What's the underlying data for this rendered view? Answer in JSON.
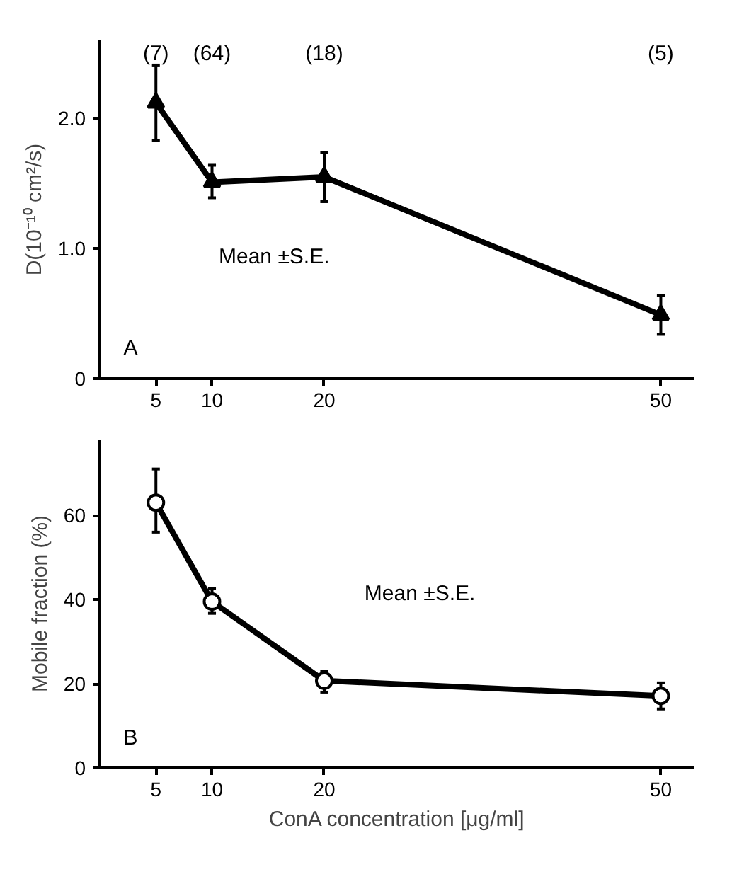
{
  "chart_data": [
    {
      "type": "line",
      "ylabel": "D(10⁻¹⁰ cm²/s)",
      "x": [
        5,
        10,
        20,
        50
      ],
      "series": [
        {
          "color": "#000000",
          "values": [
            2.12,
            1.51,
            1.55,
            0.49
          ],
          "errors": [
            [
              1.83,
              2.41
            ],
            [
              1.39,
              1.64
            ],
            [
              1.36,
              1.74
            ],
            [
              0.34,
              0.64
            ]
          ]
        }
      ],
      "xlim": [
        0,
        53
      ],
      "ylim": [
        0,
        2.6
      ],
      "xticks": [
        5,
        10,
        20,
        50
      ],
      "yticks": [
        {
          "value": 0,
          "label": "0"
        },
        {
          "value": 1,
          "label": "1.0"
        },
        {
          "value": 2,
          "label": "2.0"
        }
      ],
      "marker": "triangle",
      "line_style": "solid",
      "grid": false,
      "annotations": [
        "(7)",
        "(64)",
        "(18)",
        "(5)",
        "Mean ±S.E.",
        "A"
      ]
    },
    {
      "type": "line",
      "xlabel": "ConA concentration [μg/ml]",
      "ylabel": "Mobile fraction (%)",
      "x": [
        5,
        10,
        20,
        50
      ],
      "series": [
        {
          "color": "#000000",
          "values": [
            63,
            39.5,
            20.7,
            17.1
          ],
          "errors": [
            [
              56,
              71
            ],
            [
              36.7,
              42.6
            ],
            [
              18,
              23
            ],
            [
              14,
              20.2
            ]
          ]
        }
      ],
      "xlim": [
        0,
        53
      ],
      "ylim": [
        0,
        78
      ],
      "xticks": [
        5,
        10,
        20,
        50
      ],
      "yticks": [
        0,
        20,
        40,
        60
      ],
      "marker": "circle",
      "line_style": "solid",
      "grid": false,
      "annotations": [
        "Mean ±S.E.",
        "B"
      ]
    }
  ]
}
